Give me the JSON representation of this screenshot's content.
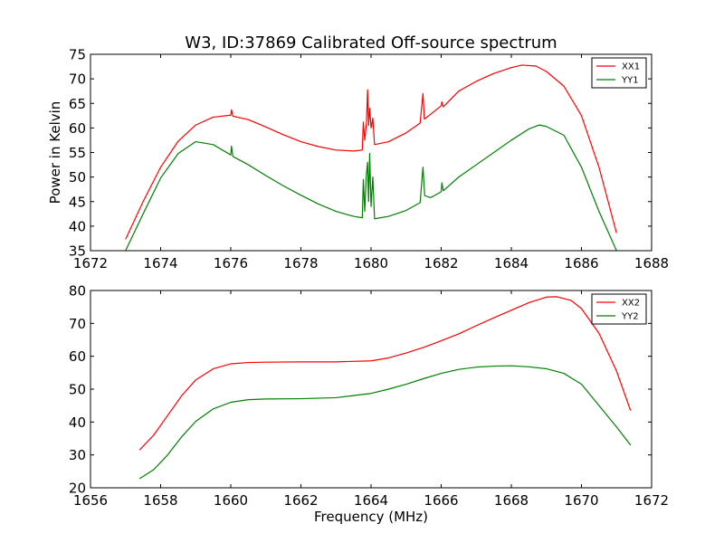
{
  "figure_title": "W3, ID:37869 Calibrated Off-source spectrum",
  "chart_data": [
    {
      "type": "line",
      "title": "W3, ID:37869 Calibrated Off-source spectrum",
      "xlabel": "",
      "ylabel": "Power in Kelvin",
      "xlim": [
        1672,
        1688
      ],
      "ylim": [
        35,
        75
      ],
      "xticks": [
        1672,
        1674,
        1676,
        1678,
        1680,
        1682,
        1684,
        1686,
        1688
      ],
      "yticks": [
        35,
        40,
        45,
        50,
        55,
        60,
        65,
        70,
        75
      ],
      "grid": false,
      "legend_placement": "top-right",
      "series": [
        {
          "name": "XX1",
          "color": "#ff0000",
          "points": [
            [
              1673.0,
              37.3
            ],
            [
              1673.5,
              45.0
            ],
            [
              1674.0,
              52.0
            ],
            [
              1674.5,
              57.3
            ],
            [
              1675.0,
              60.6
            ],
            [
              1675.5,
              62.2
            ],
            [
              1676.0,
              62.6
            ],
            [
              1676.02,
              63.7
            ],
            [
              1676.06,
              62.4
            ],
            [
              1676.5,
              61.7
            ],
            [
              1677.0,
              60.2
            ],
            [
              1677.5,
              58.6
            ],
            [
              1678.0,
              57.2
            ],
            [
              1678.5,
              56.2
            ],
            [
              1679.0,
              55.5
            ],
            [
              1679.5,
              55.3
            ],
            [
              1679.75,
              55.5
            ],
            [
              1679.78,
              61.2
            ],
            [
              1679.82,
              57.5
            ],
            [
              1679.87,
              61.0
            ],
            [
              1679.9,
              67.8
            ],
            [
              1679.93,
              60.5
            ],
            [
              1679.96,
              64.0
            ],
            [
              1680.0,
              60.0
            ],
            [
              1680.05,
              62.0
            ],
            [
              1680.1,
              56.6
            ],
            [
              1680.5,
              57.2
            ],
            [
              1681.0,
              59.0
            ],
            [
              1681.4,
              61.0
            ],
            [
              1681.48,
              67.0
            ],
            [
              1681.52,
              61.8
            ],
            [
              1681.7,
              62.8
            ],
            [
              1682.0,
              64.5
            ],
            [
              1682.02,
              65.3
            ],
            [
              1682.06,
              64.3
            ],
            [
              1682.5,
              67.5
            ],
            [
              1683.0,
              69.5
            ],
            [
              1683.5,
              71.1
            ],
            [
              1684.0,
              72.3
            ],
            [
              1684.3,
              72.8
            ],
            [
              1684.7,
              72.6
            ],
            [
              1685.0,
              71.5
            ],
            [
              1685.5,
              68.5
            ],
            [
              1686.0,
              62.5
            ],
            [
              1686.5,
              52.0
            ],
            [
              1687.0,
              38.6
            ]
          ]
        },
        {
          "name": "YY1",
          "color": "#008000",
          "points": [
            [
              1673.0,
              35.0
            ],
            [
              1673.5,
              42.5
            ],
            [
              1674.0,
              49.8
            ],
            [
              1674.5,
              54.8
            ],
            [
              1675.0,
              57.2
            ],
            [
              1675.5,
              56.6
            ],
            [
              1676.0,
              54.5
            ],
            [
              1676.02,
              56.3
            ],
            [
              1676.06,
              54.2
            ],
            [
              1676.5,
              52.5
            ],
            [
              1677.0,
              50.3
            ],
            [
              1677.5,
              48.2
            ],
            [
              1678.0,
              46.3
            ],
            [
              1678.5,
              44.5
            ],
            [
              1679.0,
              43.0
            ],
            [
              1679.5,
              42.0
            ],
            [
              1679.75,
              41.7
            ],
            [
              1679.78,
              49.5
            ],
            [
              1679.82,
              43.0
            ],
            [
              1679.86,
              50.0
            ],
            [
              1679.9,
              53.0
            ],
            [
              1679.93,
              45.0
            ],
            [
              1679.96,
              54.8
            ],
            [
              1680.0,
              44.0
            ],
            [
              1680.05,
              50.0
            ],
            [
              1680.1,
              41.5
            ],
            [
              1680.5,
              42.0
            ],
            [
              1681.0,
              43.2
            ],
            [
              1681.4,
              44.8
            ],
            [
              1681.48,
              52.0
            ],
            [
              1681.53,
              46.2
            ],
            [
              1681.7,
              45.8
            ],
            [
              1682.0,
              47.0
            ],
            [
              1682.02,
              48.8
            ],
            [
              1682.06,
              47.2
            ],
            [
              1682.5,
              50.0
            ],
            [
              1683.0,
              52.5
            ],
            [
              1683.5,
              55.0
            ],
            [
              1684.0,
              57.5
            ],
            [
              1684.5,
              59.8
            ],
            [
              1684.8,
              60.6
            ],
            [
              1685.0,
              60.3
            ],
            [
              1685.5,
              58.5
            ],
            [
              1686.0,
              52.0
            ],
            [
              1686.5,
              43.0
            ],
            [
              1687.0,
              35.0
            ]
          ]
        }
      ]
    },
    {
      "type": "line",
      "title": "",
      "xlabel": "Frequency (MHz)",
      "ylabel": "",
      "xlim": [
        1656,
        1672
      ],
      "ylim": [
        20,
        80
      ],
      "xticks": [
        1656,
        1658,
        1660,
        1662,
        1664,
        1666,
        1668,
        1670,
        1672
      ],
      "yticks": [
        20,
        30,
        40,
        50,
        60,
        70,
        80
      ],
      "grid": false,
      "legend_placement": "top-right",
      "series": [
        {
          "name": "XX2",
          "color": "#ff0000",
          "points": [
            [
              1657.4,
              31.5
            ],
            [
              1657.8,
              36.0
            ],
            [
              1658.2,
              42.0
            ],
            [
              1658.6,
              48.0
            ],
            [
              1659.0,
              52.8
            ],
            [
              1659.5,
              56.2
            ],
            [
              1660.0,
              57.7
            ],
            [
              1660.5,
              58.1
            ],
            [
              1661.0,
              58.2
            ],
            [
              1662.0,
              58.3
            ],
            [
              1663.0,
              58.3
            ],
            [
              1664.0,
              58.6
            ],
            [
              1664.5,
              59.5
            ],
            [
              1665.0,
              61.0
            ],
            [
              1665.5,
              62.7
            ],
            [
              1666.0,
              64.7
            ],
            [
              1666.5,
              66.8
            ],
            [
              1667.0,
              69.3
            ],
            [
              1667.5,
              71.7
            ],
            [
              1668.0,
              74.0
            ],
            [
              1668.5,
              76.3
            ],
            [
              1669.0,
              78.0
            ],
            [
              1669.3,
              78.1
            ],
            [
              1669.7,
              77.0
            ],
            [
              1670.0,
              74.5
            ],
            [
              1670.5,
              67.0
            ],
            [
              1671.0,
              55.5
            ],
            [
              1671.4,
              43.5
            ]
          ]
        },
        {
          "name": "YY2",
          "color": "#008000",
          "points": [
            [
              1657.4,
              22.8
            ],
            [
              1657.8,
              25.5
            ],
            [
              1658.2,
              30.0
            ],
            [
              1658.6,
              35.5
            ],
            [
              1659.0,
              40.2
            ],
            [
              1659.5,
              44.0
            ],
            [
              1660.0,
              46.0
            ],
            [
              1660.5,
              46.8
            ],
            [
              1661.0,
              47.0
            ],
            [
              1662.0,
              47.1
            ],
            [
              1663.0,
              47.4
            ],
            [
              1664.0,
              48.7
            ],
            [
              1664.5,
              50.0
            ],
            [
              1665.0,
              51.5
            ],
            [
              1665.5,
              53.2
            ],
            [
              1666.0,
              54.8
            ],
            [
              1666.5,
              56.0
            ],
            [
              1667.0,
              56.7
            ],
            [
              1667.5,
              57.0
            ],
            [
              1668.0,
              57.1
            ],
            [
              1668.5,
              56.8
            ],
            [
              1669.0,
              56.2
            ],
            [
              1669.5,
              54.8
            ],
            [
              1670.0,
              51.5
            ],
            [
              1670.5,
              45.0
            ],
            [
              1671.0,
              38.5
            ],
            [
              1671.4,
              33.0
            ]
          ]
        }
      ]
    }
  ]
}
